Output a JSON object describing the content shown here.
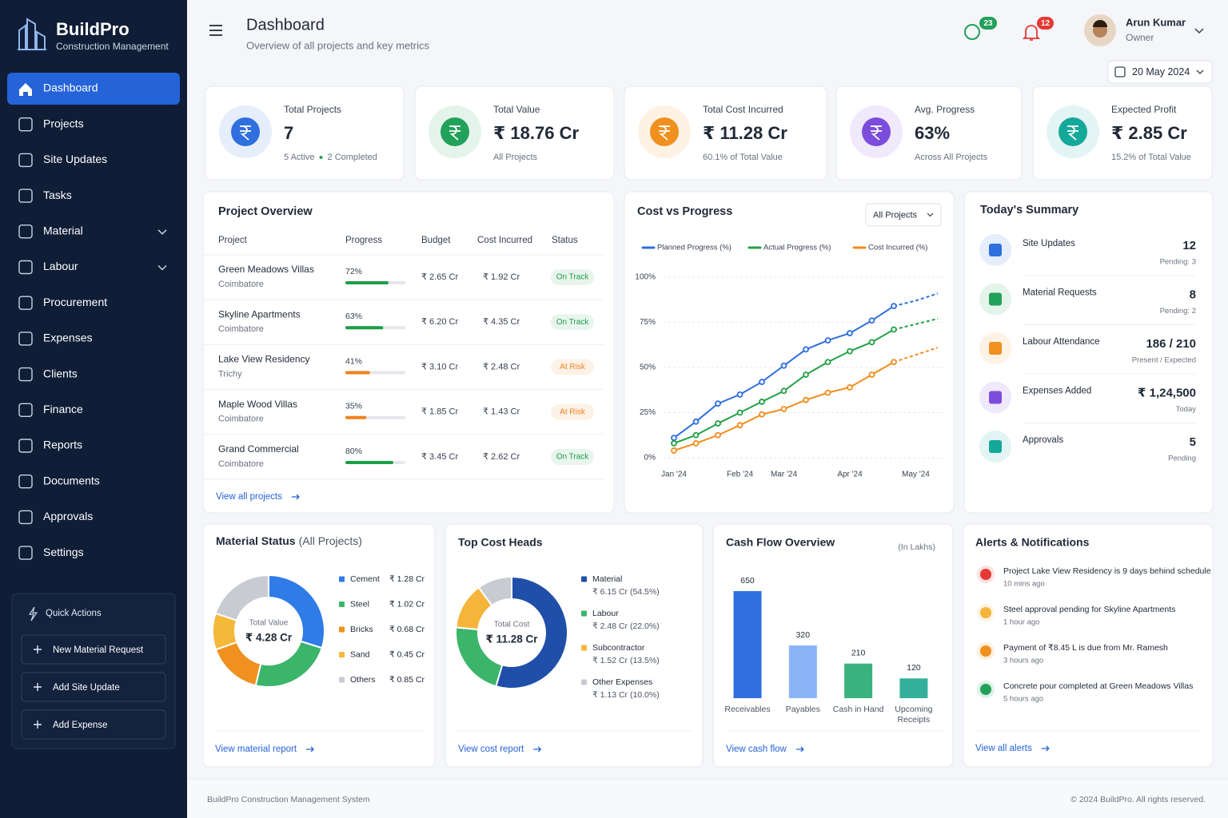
{
  "brand": {
    "name": "BuildPro",
    "tagline": "Construction Management"
  },
  "nav": {
    "items": [
      {
        "label": "Dashboard",
        "active": true
      },
      {
        "label": "Projects"
      },
      {
        "label": "Site Updates"
      },
      {
        "label": "Tasks"
      },
      {
        "label": "Material",
        "submenu": true
      },
      {
        "label": "Labour",
        "submenu": true
      },
      {
        "label": "Procurement"
      },
      {
        "label": "Expenses"
      },
      {
        "label": "Clients"
      },
      {
        "label": "Finance"
      },
      {
        "label": "Reports"
      },
      {
        "label": "Documents"
      },
      {
        "label": "Approvals"
      },
      {
        "label": "Settings"
      }
    ]
  },
  "quick_actions": {
    "title": "Quick Actions",
    "items": [
      "New Material Request",
      "Add Site Update",
      "Add Expense"
    ]
  },
  "header": {
    "title": "Dashboard",
    "subtitle": "Overview of all projects and key metrics",
    "messages": 23,
    "notifications": 12,
    "user": {
      "name": "Arun Kumar",
      "role": "Owner"
    },
    "date": "20 May 2024"
  },
  "kpis": [
    {
      "label": "Total Projects",
      "value": 7,
      "notes": [
        "5 Active",
        "2 Completed"
      ],
      "color": "#2f6fde"
    },
    {
      "label": "Total Value",
      "value": "₹ 18.76 Cr",
      "notes": [
        "All Projects"
      ],
      "color": "#22a15a"
    },
    {
      "label": "Total Cost Incurred",
      "value": "₹ 11.28 Cr",
      "notes": [
        "60.1% of Total Value"
      ],
      "color": "#f0901e"
    },
    {
      "label": "Avg. Progress",
      "value": "63%",
      "notes": [
        "Across All Projects"
      ],
      "color": "#7c4ddb"
    },
    {
      "label": "Expected Profit",
      "value": "₹ 2.85 Cr",
      "notes": [
        "15.2% of Total Value"
      ],
      "color": "#14a89a"
    }
  ],
  "project_overview": {
    "title": "Project Overview",
    "columns": [
      "Project",
      "Progress",
      "Budget",
      "Cost Incurred",
      "Status"
    ],
    "rows": [
      {
        "name": "Green Meadows Villas",
        "location": "Coimbatore",
        "progress": 72,
        "progress_label": "72%",
        "budget": "₹ 2.65 Cr",
        "cost": "₹ 1.92 Cr",
        "status": "On Track",
        "color": "#1e9e4a"
      },
      {
        "name": "Skyline Apartments",
        "location": "Coimbatore",
        "progress": 63,
        "progress_label": "63%",
        "budget": "₹ 6.20 Cr",
        "cost": "₹ 4.35 Cr",
        "status": "On Track",
        "color": "#1e9e4a"
      },
      {
        "name": "Lake View Residency",
        "location": "Trichy",
        "progress": 41,
        "progress_label": "41%",
        "budget": "₹ 3.10 Cr",
        "cost": "₹ 2.48 Cr",
        "status": "At Risk",
        "color": "#f0821e"
      },
      {
        "name": "Maple Wood Villas",
        "location": "Coimbatore",
        "progress": 35,
        "progress_label": "35%",
        "budget": "₹ 1.85 Cr",
        "cost": "₹ 1.43 Cr",
        "status": "At Risk",
        "color": "#f0821e"
      },
      {
        "name": "Grand Commercial",
        "location": "Coimbatore",
        "progress": 80,
        "progress_label": "80%",
        "budget": "₹ 3.45 Cr",
        "cost": "₹ 2.62 Cr",
        "status": "On Track",
        "color": "#1e9e4a"
      }
    ],
    "link": "View all projects"
  },
  "cost_vs_progress": {
    "type": "line",
    "title": "Cost vs Progress",
    "filter": "All Projects",
    "categories": [
      "Jan '24",
      null,
      null,
      "Feb '24",
      null,
      "Mar '24",
      null,
      null,
      "Apr '24",
      null,
      null,
      "May '24",
      null
    ],
    "ylim": [
      0,
      100
    ],
    "yticks": [
      {
        "value": 0,
        "label": "0%"
      },
      {
        "value": 25,
        "label": "25%"
      },
      {
        "value": 50,
        "label": "50%"
      },
      {
        "value": 75,
        "label": "75%"
      },
      {
        "value": 100,
        "label": "100%"
      }
    ],
    "grid": true,
    "series": [
      {
        "name": "Planned Progress (%)",
        "color": "#2f6fde",
        "values": [
          11,
          20,
          30,
          35,
          42,
          51,
          60,
          65,
          69,
          76,
          84,
          null,
          null
        ],
        "projected": [
          null,
          null,
          null,
          null,
          null,
          null,
          null,
          null,
          null,
          null,
          84,
          87,
          91
        ]
      },
      {
        "name": "Actual Progress (%)",
        "color": "#22a145",
        "values": [
          8,
          12.5,
          19,
          25,
          31,
          37,
          46,
          53,
          59,
          64,
          71,
          null,
          null
        ],
        "projected": [
          null,
          null,
          null,
          null,
          null,
          null,
          null,
          null,
          null,
          null,
          71,
          74,
          77
        ]
      },
      {
        "name": "Cost Incurred (%)",
        "color": "#f28c1c",
        "values": [
          4,
          8,
          12.5,
          18,
          24,
          27,
          32,
          36,
          39,
          46,
          53,
          null,
          null
        ],
        "projected": [
          null,
          null,
          null,
          null,
          null,
          null,
          null,
          null,
          null,
          null,
          53,
          57,
          61
        ]
      }
    ]
  },
  "today_summary": {
    "title": "Today's Summary",
    "items": [
      {
        "label": "Site Updates",
        "value": "12",
        "note": "Pending: 3",
        "color": "#2f6fde"
      },
      {
        "label": "Material Requests",
        "value": "8",
        "note": "Pending: 2",
        "color": "#22a15a"
      },
      {
        "label": "Labour Attendance",
        "value": "186 / 210",
        "note": "Present / Expected",
        "color": "#f0901e"
      },
      {
        "label": "Expenses Added",
        "value": "₹ 1,24,500",
        "note": "Today",
        "color": "#7c4ddb"
      },
      {
        "label": "Approvals",
        "value": "5",
        "note": "Pending",
        "color": "#14a89a"
      }
    ]
  },
  "material_status": {
    "type": "pie",
    "title": "Material Status",
    "subtitle": "(All Projects)",
    "center_label": "Total Value",
    "center_value": "₹ 4.28 Cr",
    "categories": [
      "Cement",
      "Steel",
      "Bricks",
      "Sand",
      "Others"
    ],
    "values": [
      1.28,
      1.02,
      0.68,
      0.45,
      0.85
    ],
    "value_labels": [
      "₹ 1.28 Cr",
      "₹ 1.02 Cr",
      "₹ 0.68 Cr",
      "₹ 0.45 Cr",
      "₹ 0.85 Cr"
    ],
    "colors": [
      "#2f7be8",
      "#3bb56a",
      "#f0901e",
      "#f5b93a",
      "#c8ccd2"
    ],
    "link": "View material report"
  },
  "top_cost_heads": {
    "type": "pie",
    "title": "Top Cost Heads",
    "center_label": "Total Cost",
    "center_value": "₹ 11.28 Cr",
    "categories": [
      "Material",
      "Labour",
      "Subcontractor",
      "Other Expenses"
    ],
    "values": [
      6.15,
      2.48,
      1.52,
      1.13
    ],
    "value_labels": [
      "₹ 6.15 Cr (54.5%)",
      "₹ 2.48 Cr (22.0%)",
      "₹ 1.52 Cr (13.5%)",
      "₹ 1.13 Cr (10.0%)"
    ],
    "colors": [
      "#1f4fa8",
      "#3bb56a",
      "#f5b43a",
      "#c8ccd2"
    ],
    "link": "View cost report"
  },
  "cash_flow": {
    "type": "bar",
    "title": "Cash Flow Overview",
    "unit": "(In Lakhs)",
    "categories": [
      "Receivables",
      "Payables",
      "Cash in Hand",
      "Upcoming Receipts"
    ],
    "values": [
      650,
      320,
      210,
      120
    ],
    "colors": [
      "#2f6fde",
      "#8ab4f8",
      "#3ab27e",
      "#33b09a"
    ],
    "link": "View cash flow"
  },
  "alerts": {
    "title": "Alerts & Notifications",
    "items": [
      {
        "text": "Project Lake View Residency is 9 days behind schedule",
        "time": "10 mins ago",
        "color": "#e53935"
      },
      {
        "text": "Steel approval pending for Skyline Apartments",
        "time": "1 hour ago",
        "color": "#f5b43a"
      },
      {
        "text": "Payment of ₹8.45 L is due from Mr. Ramesh",
        "time": "3 hours ago",
        "color": "#f0901e"
      },
      {
        "text": "Concrete pour completed at Green Meadows Villas",
        "time": "5 hours ago",
        "color": "#22a15a"
      }
    ],
    "link": "View all alerts"
  },
  "footer": {
    "left": "BuildPro Construction Management System",
    "right": "© 2024 BuildPro. All rights reserved."
  }
}
